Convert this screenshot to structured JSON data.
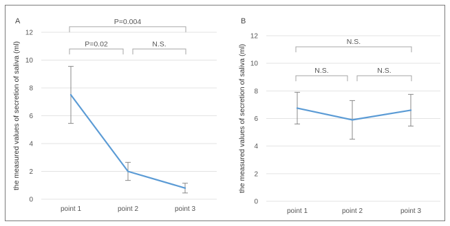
{
  "chart_data": [
    {
      "type": "line",
      "panel_label": "A",
      "ylabel": "the measured values of secretion of saliva (ml)",
      "categories": [
        "point 1",
        "point 2",
        "point 3"
      ],
      "yticks": [
        "0",
        "2",
        "4",
        "6",
        "8",
        "10",
        "12"
      ],
      "ylim": [
        0,
        12
      ],
      "grid": true,
      "series": [
        {
          "values": [
            7.5,
            2.0,
            0.8
          ],
          "error_low": [
            5.45,
            1.35,
            0.45
          ],
          "error_high": [
            9.55,
            2.65,
            1.15
          ]
        }
      ],
      "comparisons": [
        {
          "from": 0,
          "to": 2,
          "label": "P=0.004",
          "y": 12.4
        },
        {
          "from": 0,
          "to": 1,
          "label": "P=0.02",
          "y": 10.8
        },
        {
          "from": 1,
          "to": 2,
          "label": "N.S.",
          "y": 10.8
        }
      ]
    },
    {
      "type": "line",
      "panel_label": "B",
      "ylabel": "the measured values of secretion of saliva (ml)",
      "categories": [
        "point 1",
        "point 2",
        "point 3"
      ],
      "yticks": [
        "0",
        "2",
        "4",
        "6",
        "8",
        "10",
        "12"
      ],
      "ylim": [
        0,
        12
      ],
      "grid": true,
      "series": [
        {
          "values": [
            6.75,
            5.9,
            6.6
          ],
          "error_low": [
            5.6,
            4.5,
            5.45
          ],
          "error_high": [
            7.9,
            7.3,
            7.75
          ]
        }
      ],
      "comparisons": [
        {
          "from": 0,
          "to": 2,
          "label": "N.S.",
          "y": 11.2
        },
        {
          "from": 0,
          "to": 1,
          "label": "N.S.",
          "y": 9.1
        },
        {
          "from": 1,
          "to": 2,
          "label": "N.S.",
          "y": 9.1
        }
      ]
    }
  ]
}
